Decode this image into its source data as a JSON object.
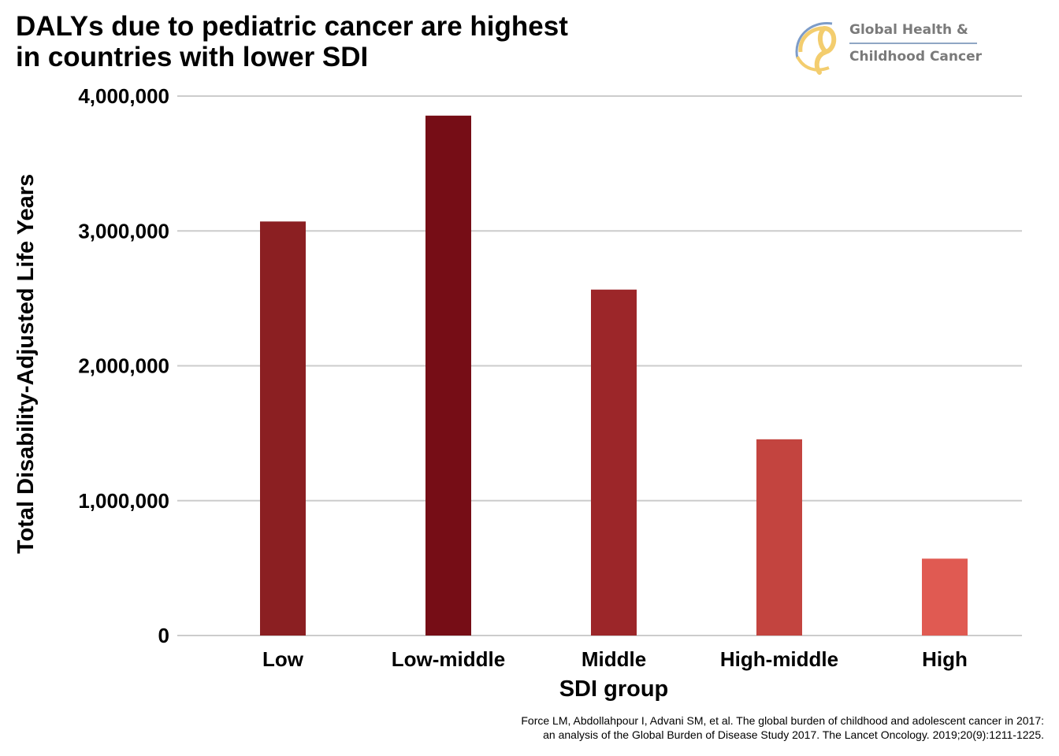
{
  "title_lines": [
    "DALYs due to pediatric cancer are highest",
    "in countries with lower SDI"
  ],
  "logo": {
    "line1": "Global Health &",
    "line2": "Childhood Cancer",
    "icon": "ribbon-logo-icon",
    "colors": {
      "arc_blue": "#7d9cc8",
      "ribbon_gold": "#f3cd6e"
    }
  },
  "chart_data": {
    "type": "bar",
    "xlabel": "SDI group",
    "ylabel": "Total Disability-Adjusted Life Years",
    "categories": [
      "Low",
      "Low-middle",
      "Middle",
      "High-middle",
      "High"
    ],
    "values": [
      3070000,
      3855000,
      2565000,
      1455000,
      570000
    ],
    "colors": [
      "#8b1f22",
      "#760d16",
      "#9c2629",
      "#c3443f",
      "#e05a52"
    ],
    "ylim": [
      0,
      4000000
    ],
    "yticks": [
      0,
      1000000,
      2000000,
      3000000,
      4000000
    ],
    "ytick_labels": [
      "0",
      "1,000,000",
      "2,000,000",
      "3,000,000",
      "4,000,000"
    ],
    "grid": true,
    "grid_color": "#cccccc"
  },
  "citation_lines": [
    "Force LM, Abdollahpour I, Advani SM, et al. The global burden of childhood and adolescent cancer in 2017:",
    "an analysis of the Global Burden of Disease Study 2017. The Lancet Oncology. 2019;20(9):1211-1225."
  ]
}
